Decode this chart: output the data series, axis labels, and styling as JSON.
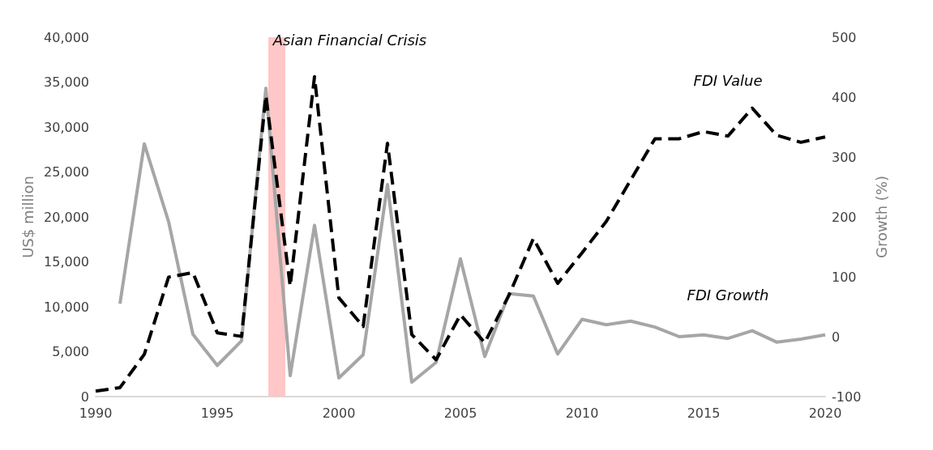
{
  "chart_data": {
    "type": "line",
    "x": [
      1990,
      1991,
      1992,
      1993,
      1994,
      1995,
      1996,
      1997,
      1998,
      1999,
      2000,
      2001,
      2002,
      2003,
      2004,
      2005,
      2006,
      2007,
      2008,
      2009,
      2010,
      2011,
      2012,
      2013,
      2014,
      2015,
      2016,
      2017,
      2018,
      2019,
      2020
    ],
    "series": [
      {
        "name": "FDI Value",
        "color": "#000000",
        "line_style": "dashed",
        "values": [
          600,
          1000,
          4700,
          13300,
          13800,
          7100,
          6700,
          33500,
          12300,
          35600,
          11000,
          7800,
          28200,
          6900,
          4100,
          9100,
          6000,
          11300,
          17600,
          12600,
          16000,
          19500,
          24100,
          28700,
          28700,
          29500,
          29000,
          32100,
          29100,
          28300,
          28900
        ]
      },
      {
        "name": "FDI Growth",
        "color": "#a6a6a6",
        "line_style": "solid",
        "axis": "y2",
        "x": [
          1991,
          1992,
          1993,
          1994,
          1995,
          1996,
          1997,
          1998,
          1999,
          2000,
          2001,
          2002,
          2003,
          2004,
          2005,
          2006,
          2007,
          2008,
          2009,
          2010,
          2011,
          2012,
          2013,
          2014,
          2015,
          2016,
          2017,
          2018,
          2019,
          2020
        ],
        "values": [
          55,
          322,
          192,
          4,
          -48,
          -7,
          415,
          -65,
          186,
          -69,
          -30,
          254,
          -76,
          -43,
          130,
          -33,
          72,
          68,
          -29,
          29,
          20,
          26,
          16,
          0,
          3,
          -3,
          10,
          -9,
          -4,
          3
        ]
      }
    ],
    "ylabel": "US$ million",
    "y2label": "Growth (%)",
    "xlim": [
      1990,
      2020
    ],
    "xticks": [
      1990,
      1995,
      2000,
      2005,
      2010,
      2015,
      2020
    ],
    "ylim": [
      0,
      40000
    ],
    "yticks": [
      0,
      {
        "value": 5000,
        "label": "5,000"
      },
      {
        "value": 10000,
        "label": "10,000"
      },
      {
        "value": 15000,
        "label": "15,000"
      },
      {
        "value": 20000,
        "label": "20,000"
      },
      {
        "value": 25000,
        "label": "25,000"
      },
      {
        "value": 30000,
        "label": "30,000"
      },
      {
        "value": 35000,
        "label": "35,000"
      },
      {
        "value": 40000,
        "label": "40,000"
      }
    ],
    "y2lim": [
      -100,
      500
    ],
    "y2ticks": [
      -100,
      0,
      100,
      200,
      300,
      400,
      500
    ],
    "bands": [
      {
        "axis": "x",
        "from": 1997.1,
        "to": 1997.8,
        "label": "Asian Financial Crisis",
        "color": "#ffc7c7"
      }
    ],
    "grid": false,
    "legend": false,
    "marker": "none"
  }
}
